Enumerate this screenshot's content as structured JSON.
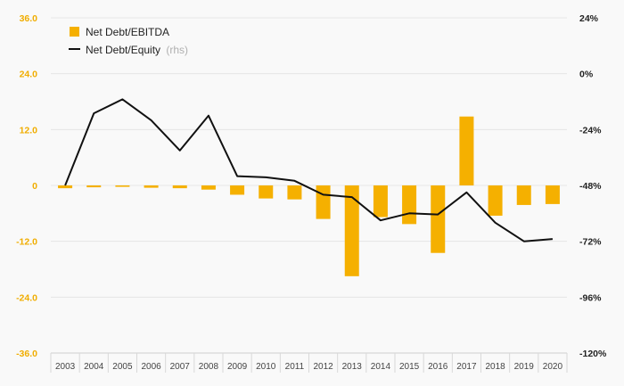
{
  "chart_data": {
    "type": "bar+line",
    "categories": [
      "2003",
      "2004",
      "2005",
      "2006",
      "2007",
      "2008",
      "2009",
      "2010",
      "2011",
      "2012",
      "2013",
      "2014",
      "2015",
      "2016",
      "2017",
      "2018",
      "2019",
      "2020"
    ],
    "series": [
      {
        "name": "Net Debt/EBITDA",
        "type": "bar",
        "axis": "left",
        "color": "#f5b000",
        "values": [
          -0.6,
          -0.4,
          -0.3,
          -0.5,
          -0.6,
          -0.9,
          -2.0,
          -2.8,
          -3.0,
          -7.2,
          -19.5,
          -6.8,
          -8.3,
          -14.5,
          14.8,
          -6.5,
          -4.2,
          -4.0
        ]
      },
      {
        "name": "Net Debt/Equity",
        "name_suffix": "(rhs)",
        "type": "line",
        "axis": "right",
        "color": "#111111",
        "values": [
          -48,
          -17,
          -11,
          -20,
          -33,
          -18,
          -44,
          -44.5,
          -46,
          -52,
          -53,
          -63,
          -60,
          -60.5,
          -51,
          -64,
          -72,
          -71
        ]
      }
    ],
    "left_axis": {
      "range": [
        -36,
        36
      ],
      "ticks": [
        -36,
        -24,
        -12,
        0,
        12,
        24,
        36
      ],
      "tick_labels": [
        "-36.0",
        "-24.0",
        "-12.0",
        "0",
        "12.0",
        "24.0",
        "36.0"
      ],
      "color": "#f0ad00"
    },
    "right_axis": {
      "range": [
        -120,
        24
      ],
      "ticks": [
        -120,
        -96,
        -72,
        -48,
        -24,
        0,
        24
      ],
      "tick_labels": [
        "-120%",
        "-96%",
        "-72%",
        "-48%",
        "-24%",
        "0%",
        "24%"
      ]
    },
    "grid": true,
    "legend_position": "top-left"
  }
}
